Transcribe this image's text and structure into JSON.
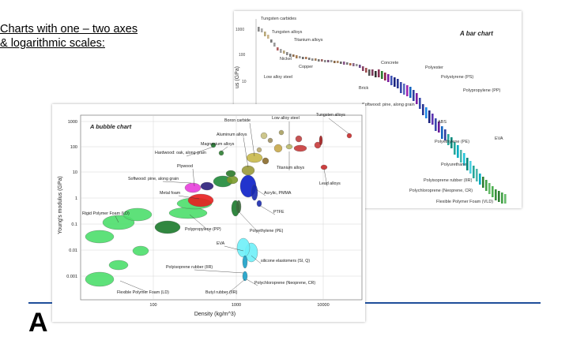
{
  "slide": {
    "heading_line1": "Charts with one – two axes",
    "heading_line2": "& logarithmic scales:",
    "big_letter": "A",
    "rule_color": "#1f4e9a"
  },
  "bar_chart": {
    "title": "A bar chart",
    "ylabel_fragment": "us (GPa)",
    "yticks": [
      "1000",
      "100",
      "10"
    ],
    "labels": {
      "tungsten_carbides": "Tungsten carbides",
      "tungsten_alloys": "Tungsten alloys",
      "titanium_alloys": "Titanium alloys",
      "nickel": "Nickel",
      "copper": "Copper",
      "low_alloy_steel": "Low alloy steel",
      "concrete": "Concrete",
      "brick": "Brick",
      "polyester": "Polyester",
      "polystyrene": "Polystyrene (PS)",
      "polypropylene": "Polypropylene (PP)",
      "softwood": "Softwood: pine, along grain",
      "abs": "ABS",
      "polyethylene": "Polyethylene (PE)",
      "eva": "EVA",
      "polyurethane": "Polyurethane",
      "polyisoprene": "Polyisoprene rubber (IIR)",
      "polychloroprene": "Polychloroprene (Neoprene, CR)",
      "flexible_foam": "Flexible Polymer Foam (VLD)"
    }
  },
  "bubble_chart": {
    "title": "A bubble chart",
    "ylabel": "Young's modulus (GPa)",
    "xlabel": "Density (kg/m^3)",
    "yticks": [
      "1000",
      "100",
      "10",
      "1",
      "0.1",
      "0.01",
      "0.001"
    ],
    "xticks": [
      "100",
      "1000",
      "10000"
    ],
    "labels": {
      "boron_carbide": "Boron carbide",
      "low_alloy_steel": "Low alloy steel",
      "tungsten_alloys": "Tungsten alloys",
      "aluminum_alloys": "Aluminum alloys",
      "magnesium_alloys": "Magnesium alloys",
      "hardwood": "Hardwood: oak, along grain",
      "plywood": "Plywood",
      "softwood": "Softwood: pine, along grain",
      "titanium_alloys": "Titanium alloys",
      "lead_alloys": "Lead alloys",
      "metal_foam": "Metal foam",
      "acrylic": "Acrylic, PMMA",
      "ptfe": "PTFE",
      "rigid_foam": "Rigid Polymer Foam (LD)",
      "polypropylene": "Polypropylene (PP)",
      "polyethylene": "Polyethylene (PE)",
      "eva": "EVA",
      "silicone": "silicone elastomers (SI, Q)",
      "polyisoprene": "Polyisoprene rubber (IIR)",
      "polychloroprene": "Polychloroprene (Neoprene, CR)",
      "flexible_foam": "Flexible Polymer Foam (LD)",
      "butyl": "Butyl rubber (IIR)"
    }
  }
}
